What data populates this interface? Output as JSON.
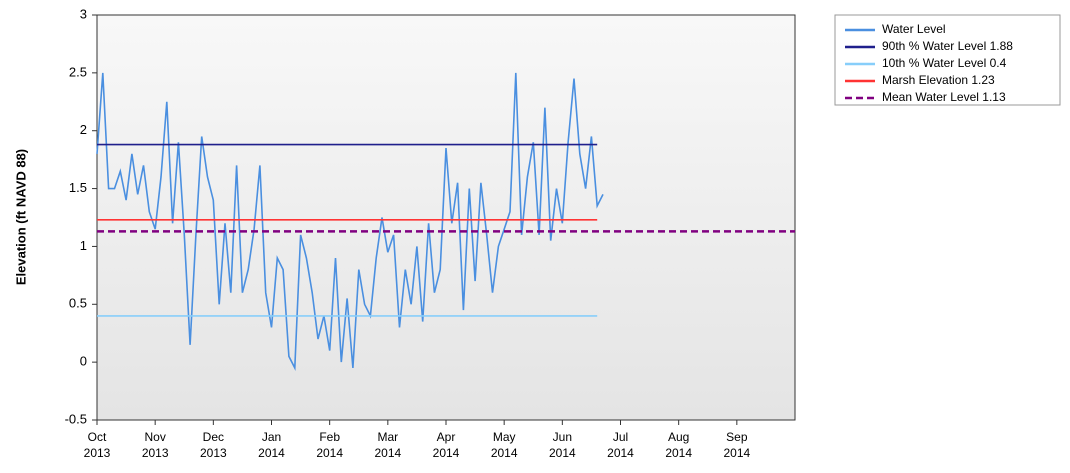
{
  "chart_data": {
    "type": "line",
    "y_label": "Elevation (ft NAVD 88)",
    "xlim": [
      0,
      12
    ],
    "xticks": [
      {
        "value": 0,
        "label": [
          "Oct",
          "2013"
        ]
      },
      {
        "value": 1,
        "label": [
          "Nov",
          "2013"
        ]
      },
      {
        "value": 2,
        "label": [
          "Dec",
          "2013"
        ]
      },
      {
        "value": 3,
        "label": [
          "Jan",
          "2014"
        ]
      },
      {
        "value": 4,
        "label": [
          "Feb",
          "2014"
        ]
      },
      {
        "value": 5,
        "label": [
          "Mar",
          "2014"
        ]
      },
      {
        "value": 6,
        "label": [
          "Apr",
          "2014"
        ]
      },
      {
        "value": 7,
        "label": [
          "May",
          "2014"
        ]
      },
      {
        "value": 8,
        "label": [
          "Jun",
          "2014"
        ]
      },
      {
        "value": 9,
        "label": [
          "Jul",
          "2014"
        ]
      },
      {
        "value": 10,
        "label": [
          "Aug",
          "2014"
        ]
      },
      {
        "value": 11,
        "label": [
          "Sep",
          "2014"
        ]
      }
    ],
    "ylim": [
      -0.5,
      3
    ],
    "yticks": [
      -0.5,
      0,
      0.5,
      1,
      1.5,
      2,
      2.5,
      3
    ],
    "legend": "outside-right",
    "series": [
      {
        "name": "Water Level",
        "color": "#4a8fe0",
        "x": [
          0,
          0.1,
          0.2,
          0.3,
          0.4,
          0.5,
          0.6,
          0.7,
          0.8,
          0.9,
          1,
          1.1,
          1.2,
          1.3,
          1.4,
          1.5,
          1.6,
          1.7,
          1.8,
          1.9,
          2,
          2.1,
          2.2,
          2.3,
          2.4,
          2.5,
          2.6,
          2.7,
          2.8,
          2.9,
          3,
          3.1,
          3.2,
          3.3,
          3.4,
          3.5,
          3.6,
          3.7,
          3.8,
          3.9,
          4,
          4.1,
          4.2,
          4.3,
          4.4,
          4.5,
          4.6,
          4.7,
          4.8,
          4.9,
          5,
          5.1,
          5.2,
          5.3,
          5.4,
          5.5,
          5.6,
          5.7,
          5.8,
          5.9,
          6,
          6.1,
          6.2,
          6.3,
          6.4,
          6.5,
          6.6,
          6.7,
          6.8,
          6.9,
          7,
          7.1,
          7.2,
          7.3,
          7.4,
          7.5,
          7.6,
          7.7,
          7.8,
          7.9,
          8,
          8.1,
          8.2,
          8.3,
          8.4,
          8.5,
          8.6,
          8.7
        ],
        "values": [
          1.8,
          2.5,
          1.5,
          1.5,
          1.65,
          1.4,
          1.8,
          1.45,
          1.7,
          1.3,
          1.15,
          1.6,
          2.25,
          1.2,
          1.9,
          1.1,
          0.15,
          1.1,
          1.95,
          1.6,
          1.4,
          0.5,
          1.2,
          0.6,
          1.7,
          0.6,
          0.8,
          1.15,
          1.7,
          0.6,
          0.3,
          0.9,
          0.8,
          0.05,
          -0.05,
          1.1,
          0.9,
          0.6,
          0.2,
          0.4,
          0.1,
          0.9,
          0,
          0.55,
          -0.05,
          0.8,
          0.5,
          0.4,
          0.9,
          1.25,
          0.95,
          1.1,
          0.3,
          0.8,
          0.5,
          1,
          0.35,
          1.2,
          0.6,
          0.8,
          1.85,
          1.2,
          1.55,
          0.45,
          1.5,
          0.7,
          1.55,
          1.1,
          0.6,
          1,
          1.15,
          1.3,
          2.5,
          1.1,
          1.6,
          1.9,
          1.1,
          2.2,
          1.05,
          1.5,
          1.2,
          1.9,
          2.45,
          1.8,
          1.5,
          1.95,
          1.35,
          1.45
        ]
      },
      {
        "name": "90th % Water Level 1.88",
        "color": "#1f1f8c",
        "x": [
          0,
          8.6
        ],
        "values": [
          1.88,
          1.88
        ]
      },
      {
        "name": "10th % Water Level 0.4",
        "color": "#87cefa",
        "x": [
          0,
          8.6
        ],
        "values": [
          0.4,
          0.4
        ]
      },
      {
        "name": "Marsh Elevation 1.23",
        "color": "#ff3333",
        "x": [
          0,
          8.6
        ],
        "values": [
          1.23,
          1.23
        ]
      },
      {
        "name": "Mean Water Level 1.13",
        "color": "#800080",
        "dashed": true,
        "x": [
          0,
          12
        ],
        "values": [
          1.13,
          1.13
        ]
      }
    ]
  }
}
